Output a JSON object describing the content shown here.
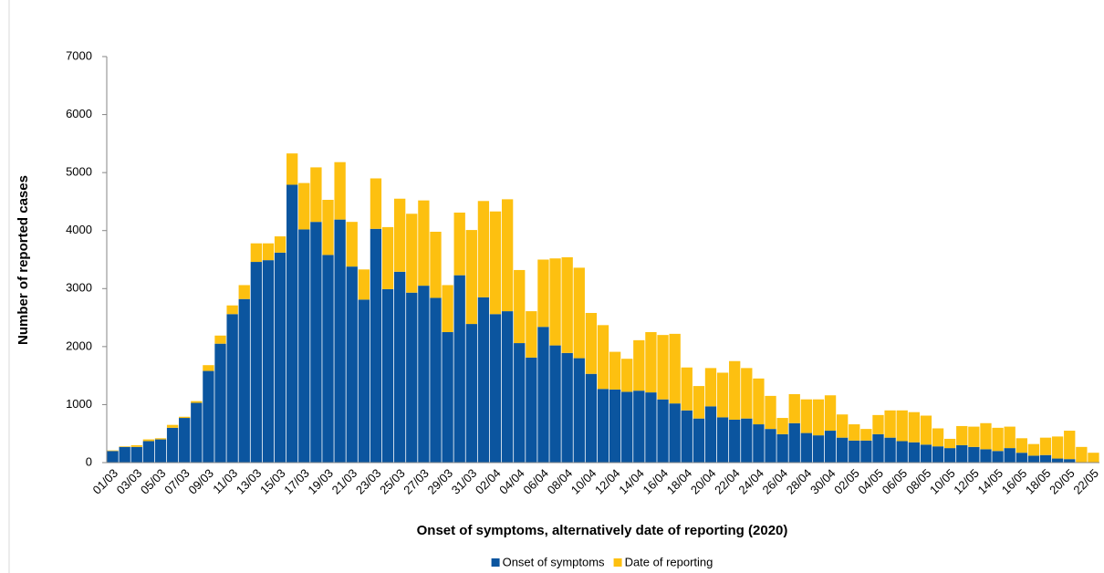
{
  "chart_data": {
    "type": "stacked-bar",
    "xlabel": "Onset of symptoms, alternatively date of reporting (2020)",
    "ylabel": "Number of reported cases",
    "categories": [
      "01/03",
      null,
      "03/03",
      null,
      "05/03",
      null,
      "07/03",
      null,
      "09/03",
      null,
      "11/03",
      null,
      "13/03",
      null,
      "15/03",
      null,
      "17/03",
      null,
      "19/03",
      null,
      "21/03",
      null,
      "23/03",
      null,
      "25/03",
      null,
      "27/03",
      null,
      "29/03",
      null,
      "31/03",
      null,
      "02/04",
      null,
      "04/04",
      null,
      "06/04",
      null,
      "08/04",
      null,
      "10/04",
      null,
      "12/04",
      null,
      "14/04",
      null,
      "16/04",
      null,
      "18/04",
      null,
      "20/04",
      null,
      "22/04",
      null,
      "24/04",
      null,
      "26/04",
      null,
      "28/04",
      null,
      "30/04",
      null,
      "02/05",
      null,
      "04/05",
      null,
      "06/05",
      null,
      "08/05",
      null,
      "10/05",
      null,
      "12/05",
      null,
      "14/05",
      null,
      "16/05",
      null,
      "18/05",
      null,
      "20/05",
      null,
      "22/05"
    ],
    "series": [
      {
        "name": "Onset of symptoms",
        "color": "#0b559f",
        "values": [
          200,
          270,
          270,
          370,
          400,
          600,
          770,
          1030,
          1580,
          2050,
          2560,
          2820,
          3460,
          3490,
          3620,
          4790,
          4020,
          4150,
          3580,
          4190,
          3380,
          2810,
          4030,
          2990,
          3290,
          2930,
          3050,
          2840,
          2250,
          3230,
          2390,
          2850,
          2560,
          2610,
          2060,
          1810,
          2340,
          2020,
          1890,
          1800,
          1530,
          1270,
          1260,
          1220,
          1240,
          1210,
          1090,
          1020,
          900,
          760,
          970,
          780,
          740,
          760,
          660,
          580,
          490,
          680,
          510,
          470,
          550,
          430,
          380,
          380,
          490,
          430,
          370,
          350,
          310,
          280,
          250,
          300,
          270,
          230,
          200,
          250,
          170,
          120,
          130,
          70,
          60,
          0,
          0
        ]
      },
      {
        "name": "Date of reporting",
        "color": "#fdc010",
        "values": [
          10,
          10,
          30,
          30,
          20,
          50,
          20,
          30,
          100,
          140,
          150,
          240,
          320,
          290,
          280,
          540,
          800,
          940,
          950,
          990,
          770,
          520,
          870,
          1070,
          1260,
          1360,
          1470,
          1140,
          810,
          1080,
          1620,
          1660,
          1770,
          1930,
          1260,
          800,
          1160,
          1500,
          1650,
          1560,
          1050,
          1100,
          650,
          570,
          870,
          1040,
          1110,
          1200,
          740,
          560,
          660,
          770,
          1010,
          870,
          790,
          570,
          280,
          500,
          580,
          620,
          610,
          400,
          280,
          200,
          330,
          470,
          530,
          520,
          500,
          310,
          160,
          330,
          350,
          450,
          400,
          370,
          250,
          200,
          300,
          380,
          490,
          270,
          170
        ]
      }
    ],
    "ylim": [
      0,
      7000
    ],
    "yticks": [
      0,
      1000,
      2000,
      3000,
      4000,
      5000,
      6000,
      7000
    ],
    "grid": false
  }
}
